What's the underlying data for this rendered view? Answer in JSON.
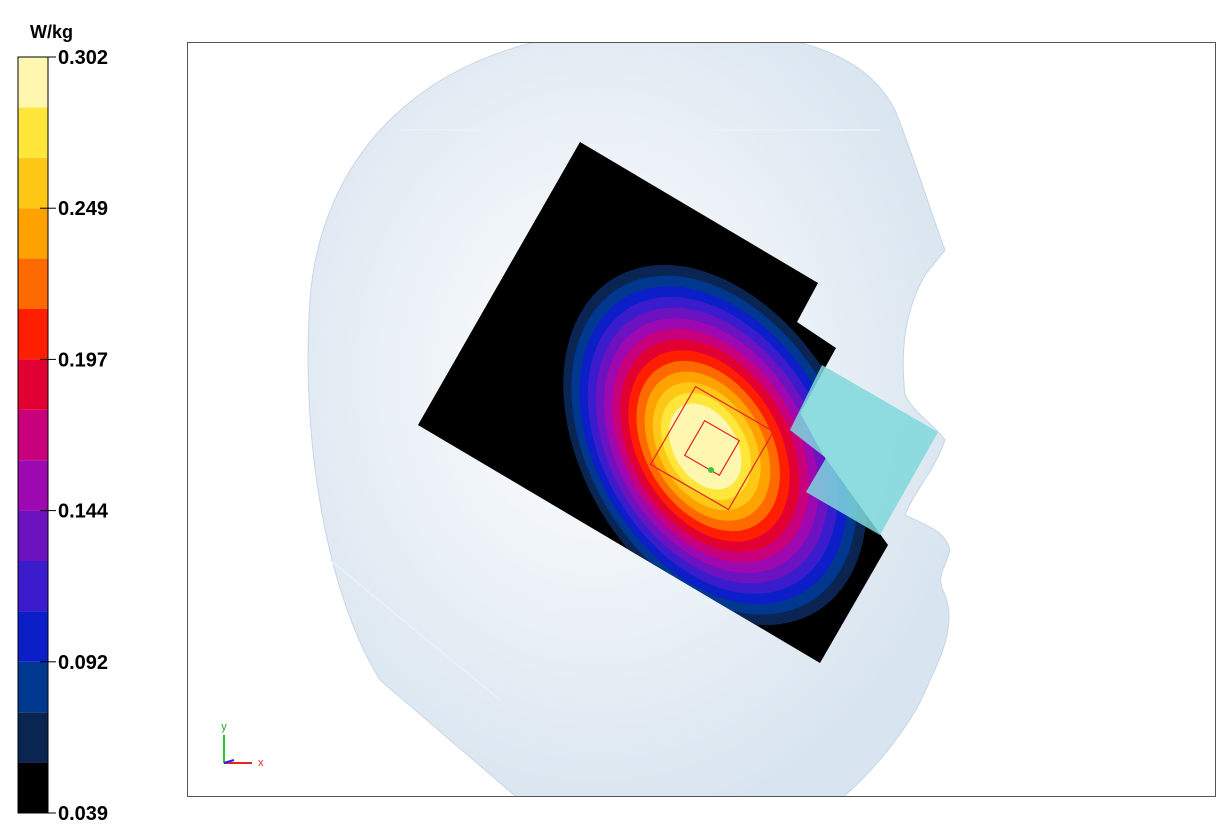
{
  "colorbar": {
    "unit": "W/kg",
    "ticks": [
      0.039,
      0.092,
      0.144,
      0.197,
      0.249,
      0.302
    ],
    "colors": [
      "#000000",
      "#0b2552",
      "#00388f",
      "#0c1ec8",
      "#3a1ccc",
      "#6c12c0",
      "#9e08b0",
      "#c8007c",
      "#e20032",
      "#ff1e00",
      "#ff6a00",
      "#ffa200",
      "#ffc816",
      "#ffe63a",
      "#fff6b0"
    ]
  },
  "axes_triad": {
    "y_label": "y",
    "x_label": "x"
  }
}
